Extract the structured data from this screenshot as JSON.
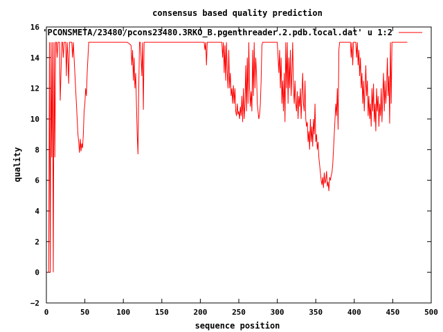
{
  "chart_data": {
    "type": "line",
    "title": "consensus based quality prediction",
    "xlabel": "sequence position",
    "ylabel": "quality",
    "xlim": [
      0,
      500
    ],
    "ylim": [
      -2,
      16
    ],
    "xticks": [
      0,
      50,
      100,
      150,
      200,
      250,
      300,
      350,
      400,
      450,
      500
    ],
    "yticks": [
      -2,
      0,
      2,
      4,
      6,
      8,
      10,
      12,
      14,
      16
    ],
    "grid": false,
    "legend_position": "top-right",
    "series": [
      {
        "name": "'PCONSMETA/23480/pcons23480.3RKO_B.pgenthreader.2.pdb.local.dat' u 1:2",
        "color": "#ff0000",
        "points": [
          [
            1,
            0
          ],
          [
            2,
            0
          ],
          [
            3,
            0
          ],
          [
            4,
            15
          ],
          [
            5,
            0
          ],
          [
            6,
            15
          ],
          [
            7,
            7.5
          ],
          [
            8,
            15
          ],
          [
            9,
            0
          ],
          [
            10,
            15
          ],
          [
            11,
            7.5
          ],
          [
            12,
            15
          ],
          [
            13,
            15
          ],
          [
            14,
            14
          ],
          [
            15,
            15
          ],
          [
            16,
            15
          ],
          [
            17,
            15
          ],
          [
            18,
            11.2
          ],
          [
            19,
            13
          ],
          [
            20,
            15
          ],
          [
            21,
            15
          ],
          [
            22,
            14
          ],
          [
            23,
            15
          ],
          [
            24,
            15
          ],
          [
            25,
            15
          ],
          [
            26,
            12.8
          ],
          [
            27,
            15
          ],
          [
            28,
            14
          ],
          [
            29,
            12.3
          ],
          [
            30,
            15
          ],
          [
            31,
            15
          ],
          [
            32,
            15
          ],
          [
            33,
            15
          ],
          [
            34,
            14
          ],
          [
            35,
            15
          ],
          [
            36,
            14
          ],
          [
            37,
            13
          ],
          [
            38,
            12
          ],
          [
            39,
            11
          ],
          [
            40,
            10
          ],
          [
            41,
            9
          ],
          [
            42,
            8.5
          ],
          [
            43,
            7.8
          ],
          [
            44,
            8.7
          ],
          [
            45,
            7.9
          ],
          [
            46,
            8.4
          ],
          [
            47,
            8.1
          ],
          [
            48,
            9
          ],
          [
            49,
            10.5
          ],
          [
            50,
            11
          ],
          [
            51,
            12
          ],
          [
            52,
            11.5
          ],
          [
            53,
            13
          ],
          [
            54,
            14
          ],
          [
            55,
            15
          ],
          [
            58,
            15
          ],
          [
            60,
            15
          ],
          [
            70,
            15
          ],
          [
            80,
            15
          ],
          [
            90,
            15
          ],
          [
            100,
            15
          ],
          [
            105,
            15
          ],
          [
            108,
            14.9
          ],
          [
            110,
            14.8
          ],
          [
            111,
            13.5
          ],
          [
            112,
            14.5
          ],
          [
            113,
            12.5
          ],
          [
            114,
            14
          ],
          [
            115,
            12
          ],
          [
            116,
            13
          ],
          [
            117,
            11
          ],
          [
            118,
            9
          ],
          [
            119,
            7.7
          ],
          [
            120,
            12
          ],
          [
            121,
            15
          ],
          [
            122,
            15
          ],
          [
            123,
            14
          ],
          [
            124,
            12.8
          ],
          [
            125,
            15
          ],
          [
            126,
            10.6
          ],
          [
            127,
            15
          ],
          [
            130,
            15
          ],
          [
            140,
            15
          ],
          [
            150,
            15
          ],
          [
            160,
            15
          ],
          [
            170,
            15
          ],
          [
            180,
            15
          ],
          [
            190,
            15
          ],
          [
            200,
            15
          ],
          [
            205,
            15
          ],
          [
            206,
            14.5
          ],
          [
            207,
            15
          ],
          [
            208,
            13.5
          ],
          [
            209,
            15
          ],
          [
            210,
            15
          ],
          [
            220,
            15
          ],
          [
            228,
            15
          ],
          [
            229,
            14
          ],
          [
            230,
            15
          ],
          [
            231,
            13
          ],
          [
            232,
            14.8
          ],
          [
            233,
            12.5
          ],
          [
            234,
            15
          ],
          [
            235,
            13
          ],
          [
            236,
            12
          ],
          [
            237,
            14.5
          ],
          [
            238,
            12
          ],
          [
            239,
            13
          ],
          [
            240,
            11.5
          ],
          [
            241,
            12
          ],
          [
            242,
            11
          ],
          [
            243,
            12.2
          ],
          [
            244,
            11
          ],
          [
            245,
            12
          ],
          [
            246,
            10.5
          ],
          [
            247,
            10.2
          ],
          [
            248,
            11
          ],
          [
            249,
            10.3
          ],
          [
            250,
            10.5
          ],
          [
            251,
            10
          ],
          [
            252,
            10.8
          ],
          [
            253,
            10.2
          ],
          [
            254,
            11.5
          ],
          [
            255,
            9.8
          ],
          [
            256,
            12
          ],
          [
            257,
            10
          ],
          [
            258,
            11
          ],
          [
            259,
            13.5
          ],
          [
            260,
            10.5
          ],
          [
            261,
            14
          ],
          [
            262,
            11
          ],
          [
            263,
            15
          ],
          [
            264,
            12
          ],
          [
            265,
            10.8
          ],
          [
            266,
            11.8
          ],
          [
            267,
            10.5
          ],
          [
            268,
            14.5
          ],
          [
            269,
            11.5
          ],
          [
            270,
            15
          ],
          [
            271,
            12
          ],
          [
            272,
            14
          ],
          [
            273,
            13
          ],
          [
            274,
            11
          ],
          [
            275,
            10.5
          ],
          [
            276,
            10
          ],
          [
            277,
            10.3
          ],
          [
            278,
            11
          ],
          [
            279,
            12.5
          ],
          [
            280,
            14.8
          ],
          [
            281,
            15
          ],
          [
            290,
            15
          ],
          [
            300,
            15
          ],
          [
            301,
            14
          ],
          [
            302,
            13
          ],
          [
            303,
            14.5
          ],
          [
            304,
            12
          ],
          [
            305,
            14
          ],
          [
            306,
            11
          ],
          [
            307,
            12.5
          ],
          [
            308,
            10.5
          ],
          [
            309,
            13
          ],
          [
            310,
            9.8
          ],
          [
            311,
            15
          ],
          [
            312,
            12
          ],
          [
            313,
            15
          ],
          [
            314,
            11
          ],
          [
            315,
            14
          ],
          [
            316,
            12
          ],
          [
            317,
            14.5
          ],
          [
            318,
            11.5
          ],
          [
            319,
            13
          ],
          [
            320,
            15
          ],
          [
            321,
            12
          ],
          [
            322,
            11
          ],
          [
            323,
            12.5
          ],
          [
            324,
            11
          ],
          [
            325,
            10.5
          ],
          [
            326,
            11.8
          ],
          [
            327,
            10
          ],
          [
            328,
            11.5
          ],
          [
            329,
            10.8
          ],
          [
            330,
            12
          ],
          [
            331,
            10
          ],
          [
            332,
            11.5
          ],
          [
            333,
            13
          ],
          [
            334,
            11
          ],
          [
            335,
            10.5
          ],
          [
            336,
            12.5
          ],
          [
            337,
            10
          ],
          [
            338,
            9.5
          ],
          [
            339,
            9.8
          ],
          [
            340,
            8.5
          ],
          [
            341,
            9.2
          ],
          [
            342,
            8
          ],
          [
            343,
            10
          ],
          [
            344,
            8.5
          ],
          [
            345,
            9.5
          ],
          [
            346,
            8.2
          ],
          [
            347,
            10
          ],
          [
            348,
            9
          ],
          [
            349,
            11
          ],
          [
            350,
            8.5
          ],
          [
            351,
            9
          ],
          [
            352,
            8
          ],
          [
            353,
            8.5
          ],
          [
            354,
            7.5
          ],
          [
            355,
            7
          ],
          [
            356,
            6.5
          ],
          [
            357,
            6
          ],
          [
            358,
            5.7
          ],
          [
            359,
            6.2
          ],
          [
            360,
            5.5
          ],
          [
            361,
            6.5
          ],
          [
            362,
            5.8
          ],
          [
            363,
            6
          ],
          [
            364,
            6.6
          ],
          [
            365,
            5.6
          ],
          [
            366,
            5.9
          ],
          [
            367,
            5.3
          ],
          [
            368,
            6.2
          ],
          [
            369,
            6
          ],
          [
            370,
            6.3
          ],
          [
            371,
            6.5
          ],
          [
            372,
            7
          ],
          [
            373,
            8
          ],
          [
            374,
            9
          ],
          [
            375,
            10
          ],
          [
            376,
            11
          ],
          [
            377,
            10.2
          ],
          [
            378,
            12
          ],
          [
            379,
            9.3
          ],
          [
            380,
            14.5
          ],
          [
            381,
            15
          ],
          [
            390,
            15
          ],
          [
            395,
            15
          ],
          [
            396,
            14
          ],
          [
            397,
            15
          ],
          [
            398,
            13.5
          ],
          [
            399,
            15
          ],
          [
            400,
            15
          ],
          [
            402,
            15
          ],
          [
            403,
            14
          ],
          [
            404,
            15
          ],
          [
            405,
            13.5
          ],
          [
            406,
            14.5
          ],
          [
            407,
            12.8
          ],
          [
            408,
            14
          ],
          [
            409,
            12
          ],
          [
            410,
            13
          ],
          [
            411,
            11
          ],
          [
            412,
            12.5
          ],
          [
            413,
            10.5
          ],
          [
            414,
            12
          ],
          [
            415,
            13.5
          ],
          [
            416,
            11.5
          ],
          [
            417,
            12.5
          ],
          [
            418,
            10.2
          ],
          [
            419,
            11.5
          ],
          [
            420,
            10
          ],
          [
            421,
            11
          ],
          [
            422,
            9.5
          ],
          [
            423,
            12
          ],
          [
            424,
            10.5
          ],
          [
            425,
            12.3
          ],
          [
            426,
            9.8
          ],
          [
            427,
            11
          ],
          [
            428,
            9.2
          ],
          [
            429,
            12
          ],
          [
            430,
            10.5
          ],
          [
            431,
            11.5
          ],
          [
            432,
            9.5
          ],
          [
            433,
            11
          ],
          [
            434,
            10.2
          ],
          [
            435,
            12
          ],
          [
            436,
            9.8
          ],
          [
            437,
            11.5
          ],
          [
            438,
            13
          ],
          [
            439,
            10.5
          ],
          [
            440,
            12.5
          ],
          [
            441,
            11
          ],
          [
            442,
            12
          ],
          [
            443,
            14
          ],
          [
            444,
            11.5
          ],
          [
            445,
            12.8
          ],
          [
            446,
            9.7
          ],
          [
            447,
            15
          ],
          [
            448,
            11
          ],
          [
            449,
            15
          ],
          [
            450,
            15
          ],
          [
            460,
            15
          ],
          [
            469,
            15
          ]
        ]
      }
    ]
  }
}
